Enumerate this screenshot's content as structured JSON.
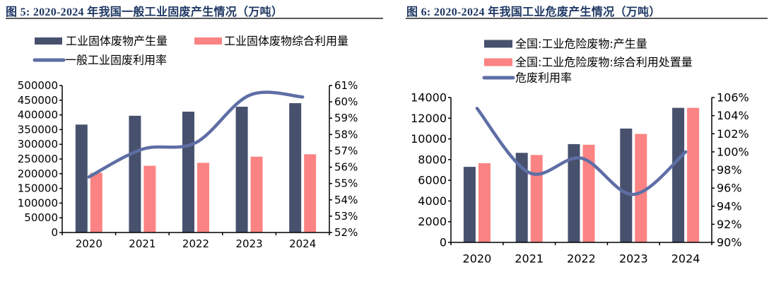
{
  "colors": {
    "bar_primary": "#47516E",
    "bar_secondary": "#FB8383",
    "rate_line": "#5E6EA5",
    "caption": "#1F3864",
    "axis": "#000000",
    "caption_rule": "#595959",
    "background": "#FFFFFF"
  },
  "figures": [
    {
      "caption": "图 5:  2020-2024 年我国一般工业固废产生情况（万吨）",
      "legend": [
        {
          "type": "bar",
          "label": "工业固体废物产生量"
        },
        {
          "type": "bar",
          "label": "工业固体废物综合利用量"
        },
        {
          "type": "line",
          "label": "一般工业固废利用率"
        }
      ],
      "chart_data": {
        "type": "bar+line",
        "categories": [
          "2020",
          "2021",
          "2022",
          "2023",
          "2024"
        ],
        "series": [
          {
            "name": "工业固体废物产生量",
            "type": "bar",
            "axis": "left",
            "values": [
              367000,
              397000,
              411000,
              428000,
              440000
            ]
          },
          {
            "name": "工业固体废物综合利用量",
            "type": "bar",
            "axis": "left",
            "values": [
              203000,
              227000,
              237000,
              258000,
              266000
            ]
          },
          {
            "name": "一般工业固废利用率",
            "type": "line",
            "axis": "right",
            "values": [
              55.4,
              57.1,
              57.5,
              60.4,
              60.3
            ]
          }
        ],
        "left_axis": {
          "min": 0,
          "max": 500000,
          "step": 50000,
          "suffix": ""
        },
        "right_axis": {
          "min": 52,
          "max": 61,
          "step": 1,
          "suffix": "%"
        },
        "grid": false,
        "legend_position": "top"
      }
    },
    {
      "caption": "图 6:  2020-2024 年我国工业危废产生情况（万吨）",
      "legend": [
        {
          "type": "bar",
          "label": "全国:工业危险废物:产生量"
        },
        {
          "type": "bar",
          "label": "全国:工业危险废物:综合利用处置量"
        },
        {
          "type": "line",
          "label": "危废利用率"
        }
      ],
      "chart_data": {
        "type": "bar+line",
        "categories": [
          "2020",
          "2021",
          "2022",
          "2023",
          "2024"
        ],
        "series": [
          {
            "name": "全国:工业危险废物:产生量",
            "type": "bar",
            "axis": "left",
            "values": [
              7300,
              8650,
              9500,
              11000,
              13000
            ]
          },
          {
            "name": "全国:工业危险废物:综合利用处置量",
            "type": "bar",
            "axis": "left",
            "values": [
              7650,
              8450,
              9440,
              10480,
              13000
            ]
          },
          {
            "name": "危废利用率",
            "type": "line",
            "axis": "right",
            "values": [
              104.8,
              97.7,
              99.3,
              95.3,
              100.0
            ]
          }
        ],
        "left_axis": {
          "min": 0,
          "max": 14000,
          "step": 2000,
          "suffix": ""
        },
        "right_axis": {
          "min": 90,
          "max": 106,
          "step": 2,
          "suffix": "%"
        },
        "grid": false,
        "legend_position": "top"
      }
    }
  ]
}
